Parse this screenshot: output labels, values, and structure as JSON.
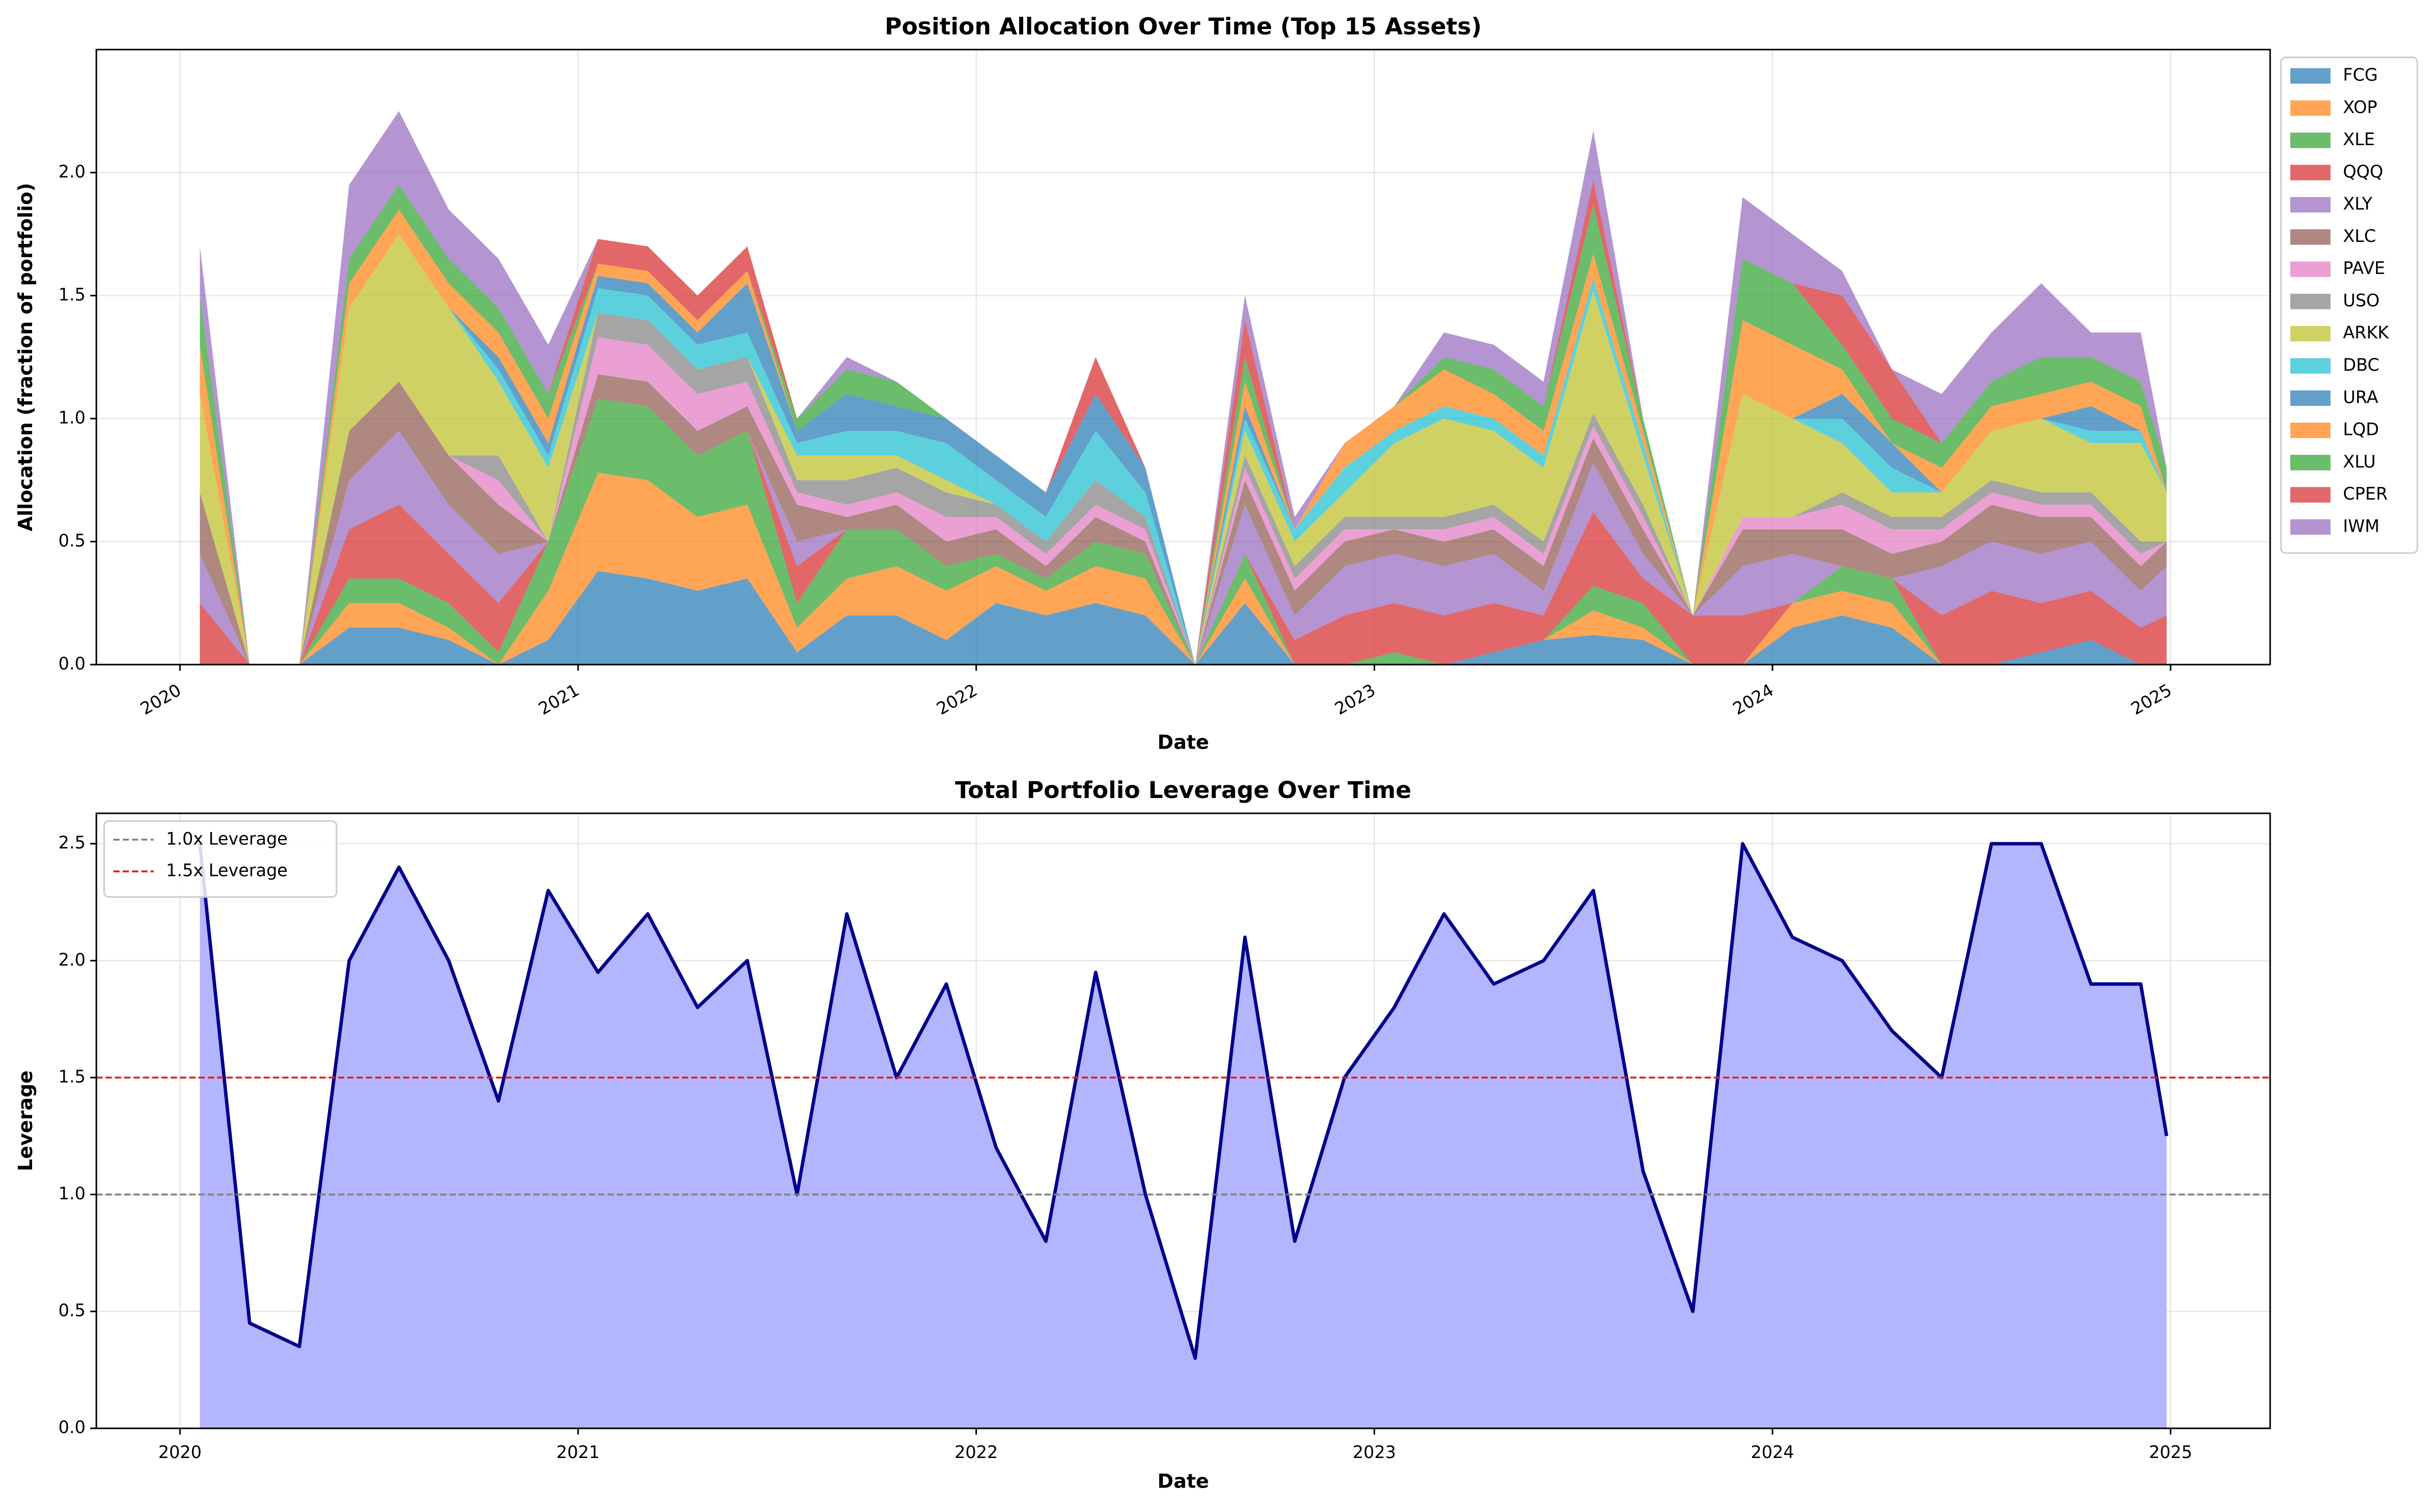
{
  "chart_data": [
    {
      "type": "stacked_area",
      "title": "Position Allocation Over Time (Top 15 Assets)",
      "xlabel": "Date",
      "ylabel": "Allocation (fraction of portfolio)",
      "x": [
        2020.05,
        2020.175,
        2020.3,
        2020.425,
        2020.55,
        2020.675,
        2020.8,
        2020.925,
        2021.05,
        2021.175,
        2021.3,
        2021.425,
        2021.55,
        2021.675,
        2021.8,
        2021.925,
        2022.05,
        2022.175,
        2022.3,
        2022.425,
        2022.55,
        2022.675,
        2022.8,
        2022.925,
        2023.05,
        2023.175,
        2023.3,
        2023.425,
        2023.55,
        2023.675,
        2023.8,
        2023.925,
        2024.05,
        2024.175,
        2024.3,
        2024.425,
        2024.55,
        2024.675,
        2024.8,
        2024.925,
        2024.99
      ],
      "series": [
        {
          "name": "FCG",
          "color": "#1f77b4",
          "values": [
            0,
            0,
            0,
            0.15,
            0.15,
            0.1,
            0,
            0.1,
            0.38,
            0.35,
            0.3,
            0.35,
            0.05,
            0.2,
            0.2,
            0.1,
            0.25,
            0.2,
            0.25,
            0.2,
            0,
            0.25,
            0,
            0,
            0,
            0,
            0.05,
            0.1,
            0.12,
            0.1,
            0,
            0,
            0.15,
            0.2,
            0.15,
            0,
            0,
            0.05,
            0.1,
            0,
            0
          ]
        },
        {
          "name": "XOP",
          "color": "#ff7f0e",
          "values": [
            0,
            0,
            0,
            0.1,
            0.1,
            0.05,
            0,
            0.2,
            0.4,
            0.4,
            0.3,
            0.3,
            0.1,
            0.15,
            0.2,
            0.2,
            0.15,
            0.1,
            0.15,
            0.15,
            0,
            0.1,
            0,
            0,
            0,
            0,
            0,
            0,
            0.1,
            0.05,
            0,
            0,
            0.1,
            0.1,
            0.1,
            0,
            0,
            0,
            0,
            0,
            0
          ]
        },
        {
          "name": "XLE",
          "color": "#2ca02c",
          "values": [
            0,
            0,
            0,
            0.1,
            0.1,
            0.1,
            0.05,
            0.2,
            0.3,
            0.3,
            0.25,
            0.3,
            0.1,
            0.2,
            0.15,
            0.1,
            0.05,
            0.05,
            0.1,
            0.1,
            0,
            0.1,
            0,
            0,
            0.05,
            0,
            0,
            0,
            0.1,
            0.1,
            0,
            0,
            0,
            0.1,
            0.1,
            0,
            0,
            0,
            0,
            0,
            0
          ]
        },
        {
          "name": "QQQ",
          "color": "#d62728",
          "values": [
            0.25,
            0,
            0,
            0.2,
            0.3,
            0.2,
            0.2,
            0,
            0,
            0,
            0,
            0,
            0.15,
            0,
            0,
            0,
            0,
            0,
            0,
            0,
            0,
            0,
            0.1,
            0.2,
            0.2,
            0.2,
            0.2,
            0.1,
            0.3,
            0.1,
            0.2,
            0.2,
            0,
            0,
            0,
            0.2,
            0.3,
            0.2,
            0.2,
            0.15,
            0.2
          ]
        },
        {
          "name": "XLY",
          "color": "#9467bd",
          "values": [
            0.2,
            0,
            0,
            0.2,
            0.3,
            0.2,
            0.2,
            0,
            0,
            0,
            0,
            0,
            0.1,
            0,
            0,
            0,
            0,
            0,
            0,
            0,
            0,
            0.2,
            0.1,
            0.2,
            0.2,
            0.2,
            0.2,
            0.1,
            0.2,
            0.1,
            0,
            0.2,
            0.2,
            0,
            0,
            0.2,
            0.2,
            0.2,
            0.2,
            0.15,
            0.2
          ]
        },
        {
          "name": "XLC",
          "color": "#8c564b",
          "values": [
            0.25,
            0,
            0,
            0.2,
            0.2,
            0.2,
            0.2,
            0,
            0.1,
            0.1,
            0.1,
            0.1,
            0.15,
            0.05,
            0.1,
            0.1,
            0.1,
            0.05,
            0.1,
            0.05,
            0,
            0.1,
            0.1,
            0.1,
            0.1,
            0.1,
            0.1,
            0.1,
            0.1,
            0.1,
            0,
            0.15,
            0.1,
            0.15,
            0.1,
            0.1,
            0.15,
            0.15,
            0.1,
            0.1,
            0.1
          ]
        },
        {
          "name": "PAVE",
          "color": "#e377c2",
          "values": [
            0,
            0,
            0,
            0,
            0,
            0,
            0.1,
            0,
            0.15,
            0.15,
            0.15,
            0.1,
            0.05,
            0.05,
            0.05,
            0.1,
            0.05,
            0.05,
            0.05,
            0.05,
            0,
            0.05,
            0.05,
            0.05,
            0,
            0.05,
            0.05,
            0.05,
            0.05,
            0.05,
            0,
            0.05,
            0.05,
            0.1,
            0.1,
            0.05,
            0.05,
            0.05,
            0.05,
            0.05,
            0
          ]
        },
        {
          "name": "USO",
          "color": "#7f7f7f",
          "values": [
            0,
            0,
            0,
            0,
            0,
            0,
            0.1,
            0,
            0.1,
            0.1,
            0.1,
            0.1,
            0.05,
            0.1,
            0.1,
            0.1,
            0.05,
            0.05,
            0.1,
            0.05,
            0,
            0.05,
            0.05,
            0.05,
            0.05,
            0.05,
            0.05,
            0.05,
            0.05,
            0.05,
            0,
            0,
            0,
            0.05,
            0.05,
            0.05,
            0.05,
            0.05,
            0.05,
            0.05,
            0
          ]
        },
        {
          "name": "ARKK",
          "color": "#bcbd22",
          "values": [
            0.4,
            0,
            0,
            0.5,
            0.6,
            0.6,
            0.3,
            0.3,
            0,
            0,
            0,
            0,
            0.1,
            0.1,
            0.05,
            0.05,
            0,
            0,
            0,
            0,
            0,
            0.1,
            0.1,
            0.1,
            0.3,
            0.4,
            0.3,
            0.3,
            0.5,
            0.2,
            0,
            0.5,
            0.4,
            0.2,
            0.1,
            0.1,
            0.2,
            0.3,
            0.2,
            0.4,
            0.2
          ]
        },
        {
          "name": "DBC",
          "color": "#17becf",
          "values": [
            0,
            0,
            0,
            0,
            0,
            0,
            0.05,
            0.05,
            0.1,
            0.1,
            0.1,
            0.1,
            0.05,
            0.1,
            0.1,
            0.15,
            0.1,
            0.1,
            0.2,
            0.1,
            0,
            0.05,
            0.05,
            0.1,
            0.05,
            0.05,
            0.05,
            0.05,
            0.05,
            0.05,
            0,
            0,
            0,
            0.1,
            0.1,
            0,
            0,
            0,
            0.05,
            0.05,
            0
          ]
        },
        {
          "name": "URA",
          "color": "#1f77b4",
          "values": [
            0,
            0,
            0,
            0,
            0,
            0,
            0.05,
            0.05,
            0.05,
            0.05,
            0.05,
            0.2,
            0.05,
            0.15,
            0.1,
            0.1,
            0.1,
            0.1,
            0.15,
            0.1,
            0,
            0.05,
            0,
            0,
            0,
            0,
            0,
            0,
            0,
            0,
            0,
            0,
            0,
            0.1,
            0.1,
            0,
            0,
            0,
            0.1,
            0,
            0
          ]
        },
        {
          "name": "LQD",
          "color": "#ff7f0e",
          "values": [
            0.2,
            0,
            0,
            0.1,
            0.1,
            0.1,
            0.1,
            0.1,
            0.05,
            0.05,
            0.05,
            0.05,
            0,
            0,
            0,
            0,
            0,
            0,
            0,
            0,
            0,
            0.1,
            0,
            0.1,
            0.1,
            0.15,
            0.1,
            0.1,
            0.1,
            0.05,
            0,
            0.3,
            0.3,
            0.1,
            0,
            0.1,
            0.1,
            0.1,
            0.1,
            0.1,
            0
          ]
        },
        {
          "name": "XLU",
          "color": "#2ca02c",
          "values": [
            0.2,
            0,
            0,
            0.1,
            0.1,
            0.1,
            0.1,
            0.1,
            0,
            0,
            0,
            0,
            0.05,
            0.1,
            0.1,
            0,
            0,
            0,
            0,
            0,
            0,
            0.1,
            0,
            0,
            0,
            0.05,
            0.1,
            0.1,
            0.2,
            0.05,
            0,
            0.25,
            0.25,
            0.1,
            0.1,
            0.1,
            0.1,
            0.15,
            0.1,
            0.1,
            0.1
          ]
        },
        {
          "name": "CPER",
          "color": "#d62728",
          "values": [
            0,
            0,
            0,
            0,
            0,
            0,
            0,
            0,
            0.1,
            0.1,
            0.1,
            0.1,
            0,
            0,
            0,
            0,
            0,
            0,
            0.15,
            0,
            0,
            0.15,
            0,
            0,
            0,
            0,
            0,
            0,
            0.1,
            0,
            0,
            0,
            0,
            0.2,
            0.2,
            0,
            0,
            0,
            0,
            0,
            0
          ]
        },
        {
          "name": "IWM",
          "color": "#9467bd",
          "values": [
            0.2,
            0,
            0,
            0.3,
            0.3,
            0.2,
            0.2,
            0.2,
            0,
            0,
            0,
            0,
            0,
            0.05,
            0,
            0,
            0,
            0,
            0,
            0,
            0,
            0.1,
            0.05,
            0,
            0,
            0.1,
            0.1,
            0.1,
            0.2,
            0,
            0,
            0.25,
            0.2,
            0.1,
            0,
            0.2,
            0.2,
            0.3,
            0.1,
            0.2,
            0
          ]
        }
      ],
      "opacity": 0.7,
      "xlim": [
        2019.79,
        2025.25
      ],
      "xticks": [
        2020,
        2021,
        2022,
        2023,
        2024,
        2025
      ],
      "xtick_rotation": 30,
      "ylim": [
        0,
        2.5
      ],
      "yticks": [
        {
          "value": 0,
          "label": "0.0"
        },
        {
          "value": 0.5,
          "label": "0.5"
        },
        {
          "value": 1,
          "label": "1.0"
        },
        {
          "value": 1.5,
          "label": "1.5"
        },
        {
          "value": 2,
          "label": "2.0"
        }
      ],
      "grid": true,
      "legend": "outside right"
    },
    {
      "type": "line",
      "title": "Total Portfolio Leverage Over Time",
      "xlabel": "Date",
      "ylabel": "Leverage",
      "x": [
        2020.05,
        2020.175,
        2020.3,
        2020.425,
        2020.55,
        2020.675,
        2020.8,
        2020.925,
        2021.05,
        2021.175,
        2021.3,
        2021.425,
        2021.55,
        2021.675,
        2021.8,
        2021.925,
        2022.05,
        2022.175,
        2022.3,
        2022.425,
        2022.55,
        2022.675,
        2022.8,
        2022.925,
        2023.05,
        2023.175,
        2023.3,
        2023.425,
        2023.55,
        2023.675,
        2023.8,
        2023.925,
        2024.05,
        2024.175,
        2024.3,
        2024.425,
        2024.55,
        2024.675,
        2024.8,
        2024.925,
        2024.99
      ],
      "values": [
        2.5,
        0.45,
        0.35,
        2.0,
        2.4,
        2.0,
        1.4,
        2.3,
        1.95,
        2.2,
        1.8,
        2.0,
        1.0,
        2.2,
        1.5,
        1.9,
        1.2,
        0.8,
        1.95,
        1.0,
        0.3,
        2.1,
        0.8,
        1.5,
        1.8,
        2.2,
        1.9,
        2.0,
        2.3,
        1.1,
        0.5,
        2.5,
        2.1,
        2.0,
        1.7,
        1.5,
        2.5,
        2.5,
        1.9,
        1.9,
        1.25
      ],
      "color": "#00008b",
      "fill_color": "#b3b5ff",
      "hlines": [
        {
          "value": 1.0,
          "label": "1.0x Leverage",
          "color": "#808080"
        },
        {
          "value": 1.5,
          "label": "1.5x Leverage",
          "color": "#e8191c"
        }
      ],
      "xlim": [
        2019.79,
        2025.25
      ],
      "xticks": [
        2020,
        2021,
        2022,
        2023,
        2024,
        2025
      ],
      "ylim": [
        0,
        2.63
      ],
      "yticks": [
        {
          "value": 0,
          "label": "0.0"
        },
        {
          "value": 0.5,
          "label": "0.5"
        },
        {
          "value": 1,
          "label": "1.0"
        },
        {
          "value": 1.5,
          "label": "1.5"
        },
        {
          "value": 2,
          "label": "2.0"
        },
        {
          "value": 2.5,
          "label": "2.5"
        }
      ],
      "grid": true,
      "legend": "upper left"
    }
  ]
}
